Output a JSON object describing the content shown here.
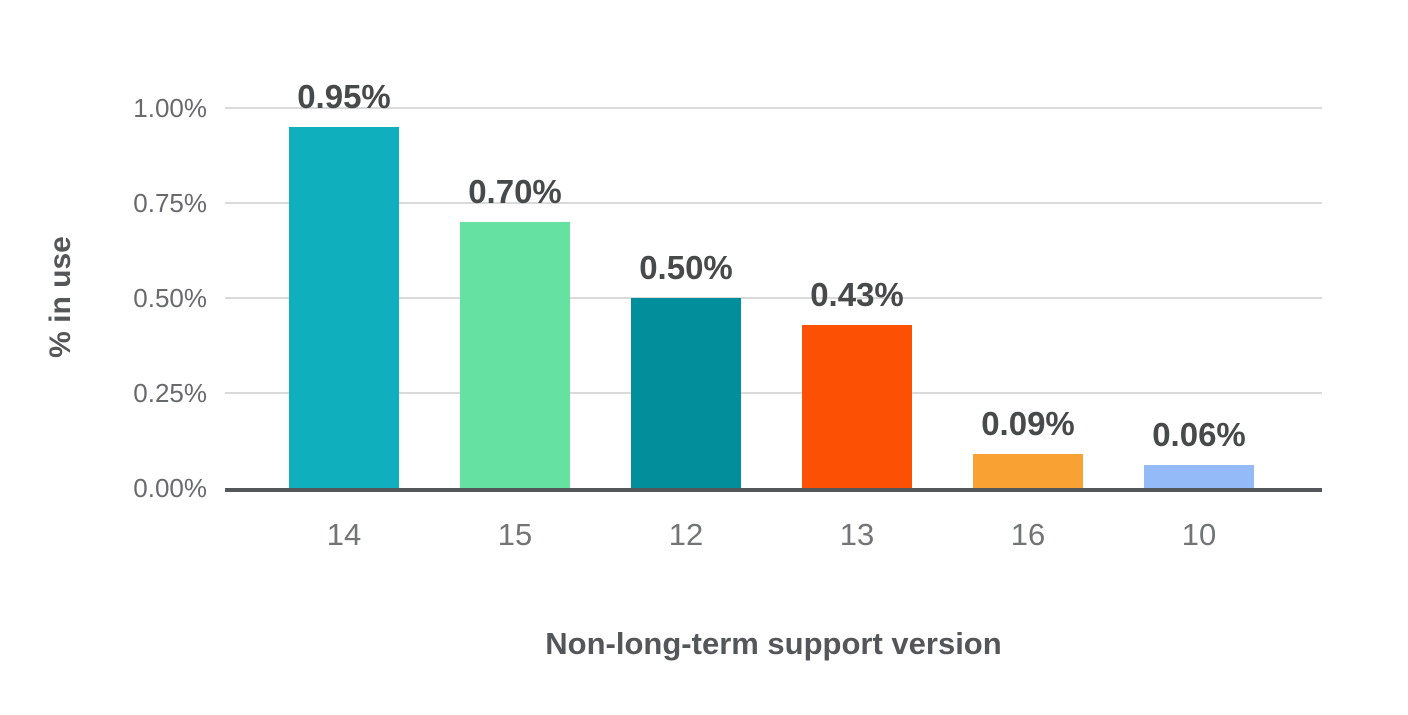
{
  "chart_data": {
    "type": "bar",
    "title": "",
    "xlabel": "Non-long-term support version",
    "ylabel": "% in use",
    "categories": [
      "14",
      "15",
      "12",
      "13",
      "16",
      "10"
    ],
    "values": [
      0.95,
      0.7,
      0.5,
      0.43,
      0.09,
      0.06
    ],
    "value_labels": [
      "0.95%",
      "0.70%",
      "0.50%",
      "0.43%",
      "0.09%",
      "0.06%"
    ],
    "bar_colors": [
      "#0FAFBE",
      "#65E2A1",
      "#038E9B",
      "#FC5004",
      "#FAA133",
      "#95BAF8"
    ],
    "ylim": [
      0,
      1.0
    ],
    "yticks": [
      {
        "value": 0.0,
        "label": "0.00%"
      },
      {
        "value": 0.25,
        "label": "0.25%"
      },
      {
        "value": 0.5,
        "label": "0.50%"
      },
      {
        "value": 0.75,
        "label": "0.75%"
      },
      {
        "value": 1.0,
        "label": "1.00%"
      }
    ],
    "grid": true,
    "legend": false,
    "style": {
      "grid_color": "#dadada",
      "baseline_color": "#55565a",
      "value_label_color": "#48494b",
      "tick_label_color": "#737477",
      "axis_title_color": "#55565a",
      "background": "#ffffff"
    }
  }
}
